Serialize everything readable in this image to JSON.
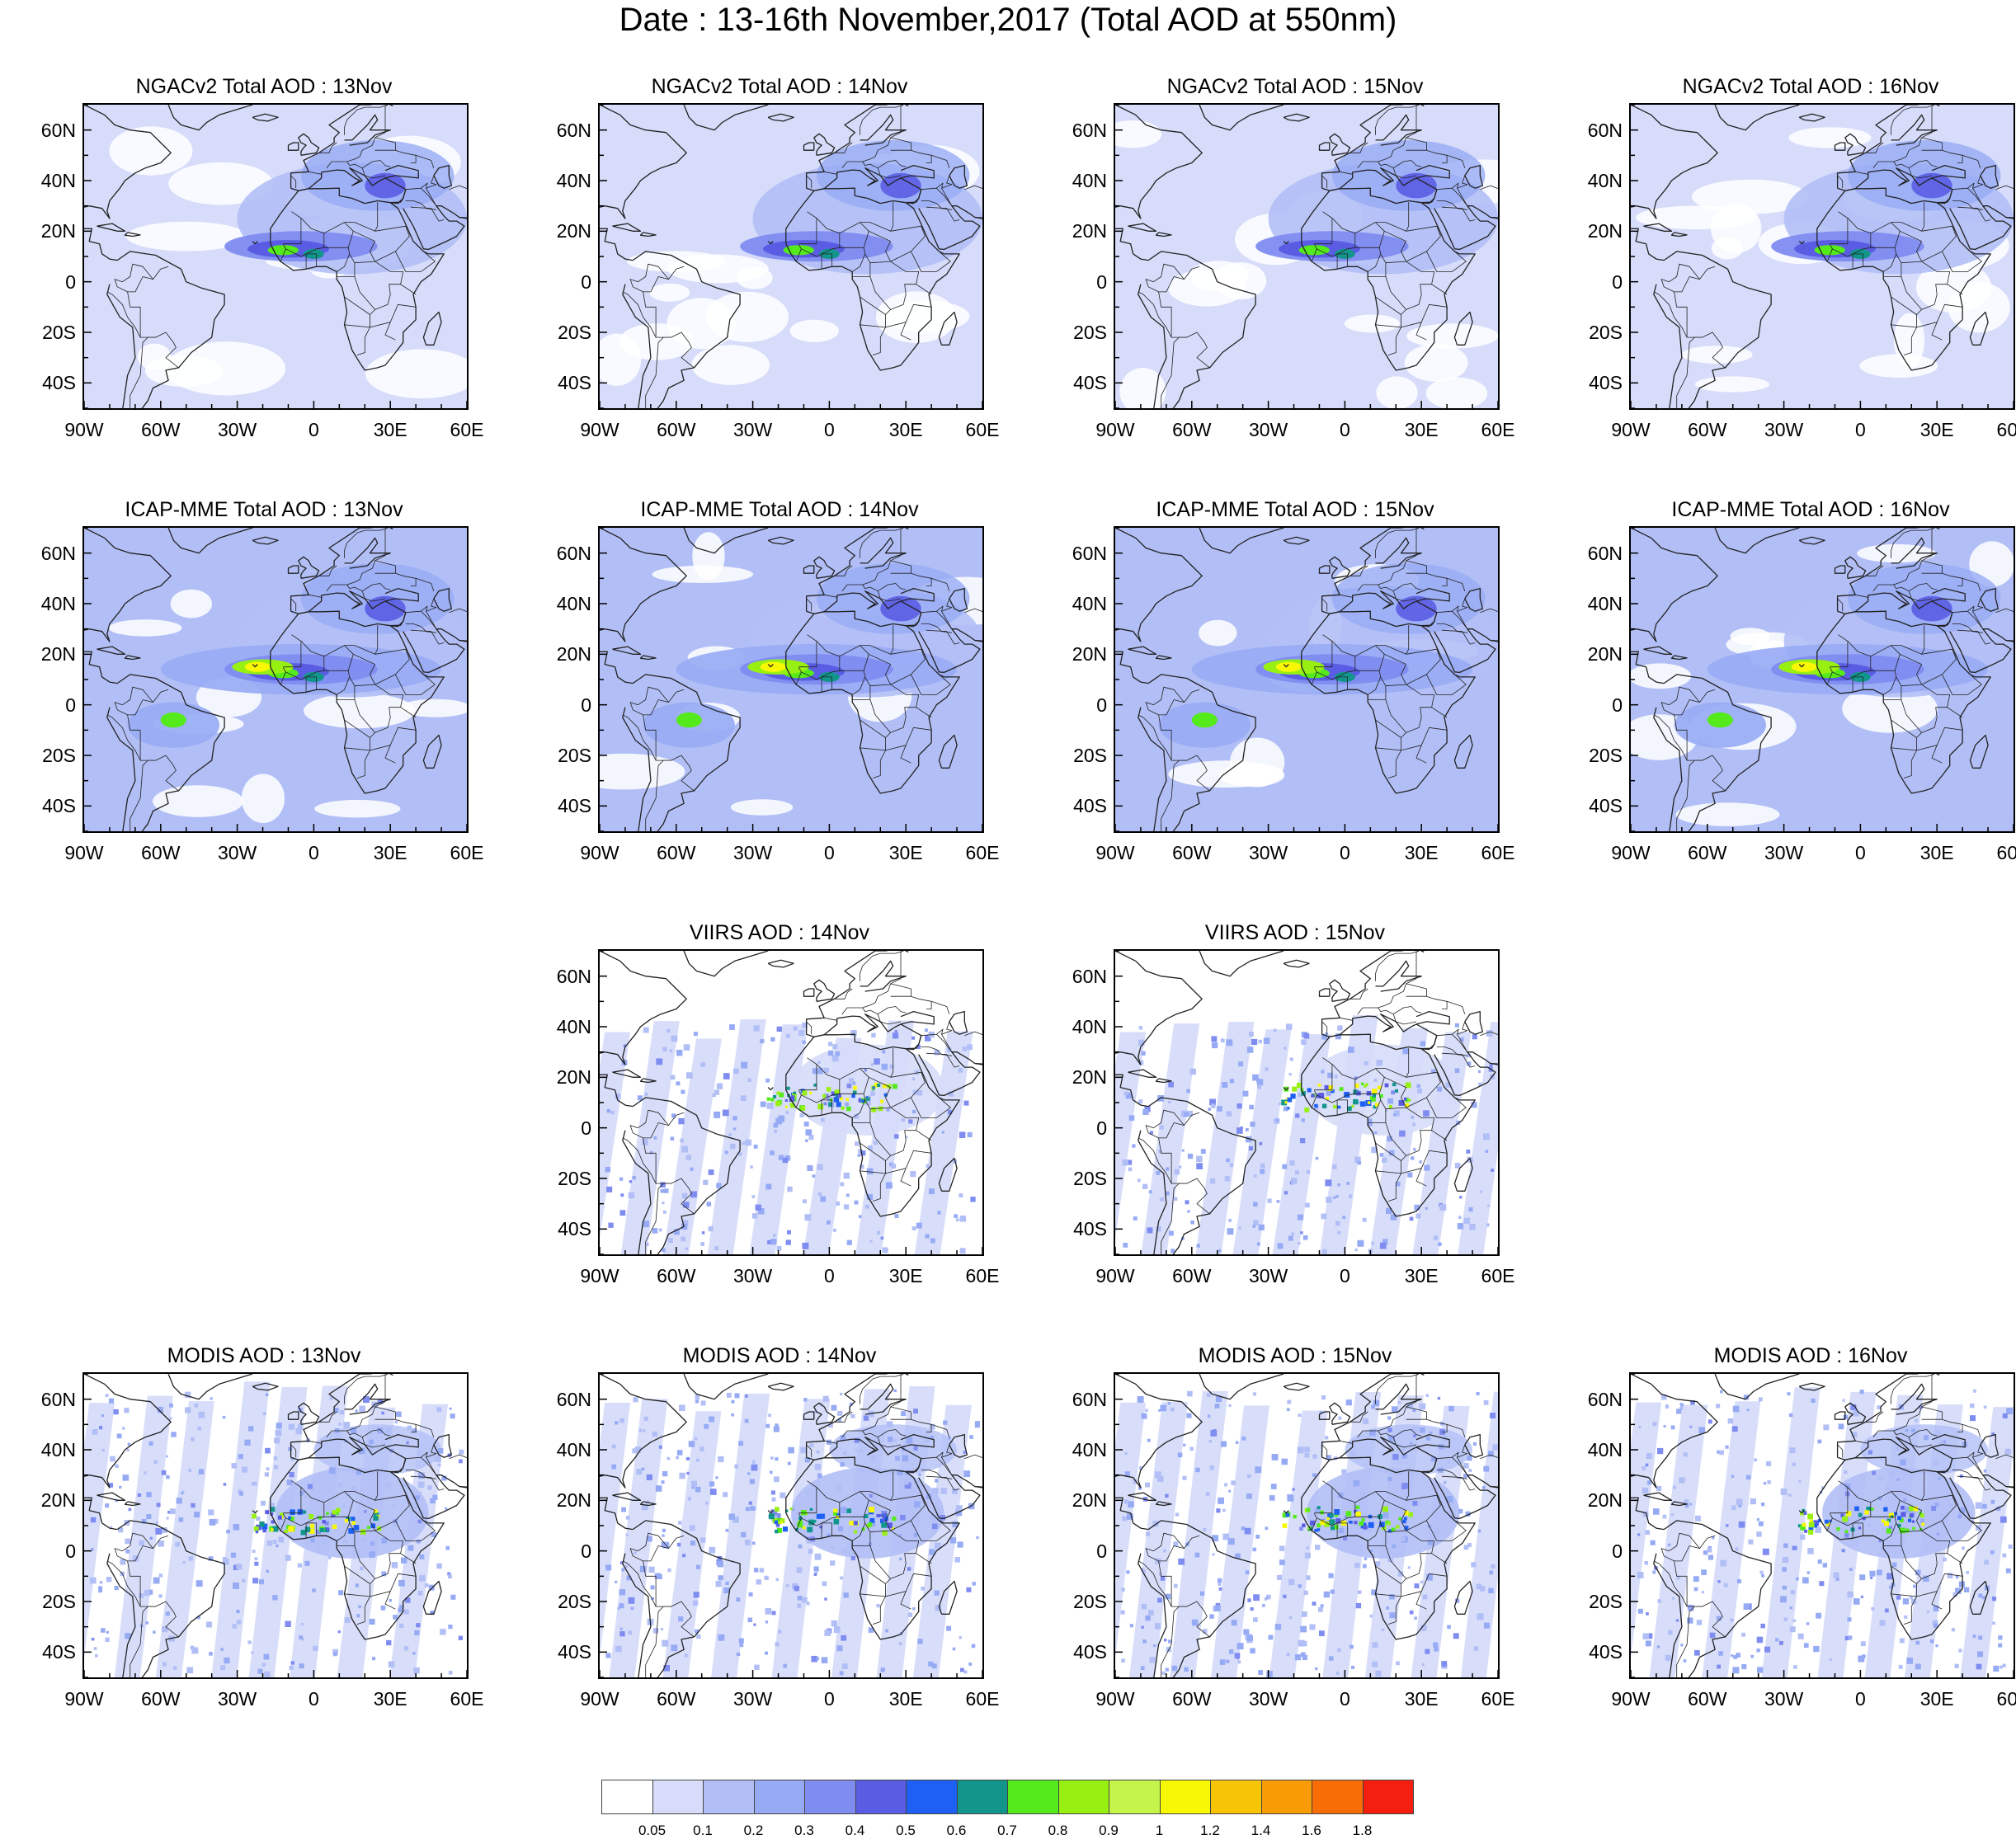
{
  "title": "Date : 13-16th November,2017 (Total AOD at 550nm)",
  "axes": {
    "y_labels": [
      "60N",
      "40N",
      "20N",
      "0",
      "20S",
      "40S"
    ],
    "x_labels": [
      "90W",
      "60W",
      "30W",
      "0",
      "30E",
      "60E"
    ]
  },
  "panels": {
    "ngac_13": {
      "title": "NGACv2 Total AOD : 13Nov",
      "style": "ngac"
    },
    "ngac_14": {
      "title": "NGACv2 Total AOD : 14Nov",
      "style": "ngac"
    },
    "ngac_15": {
      "title": "NGACv2 Total AOD : 15Nov",
      "style": "ngac"
    },
    "ngac_16": {
      "title": "NGACv2 Total AOD : 16Nov",
      "style": "ngac"
    },
    "icap_13": {
      "title": "ICAP-MME Total AOD : 13Nov",
      "style": "icap"
    },
    "icap_14": {
      "title": "ICAP-MME Total AOD : 14Nov",
      "style": "icap"
    },
    "icap_15": {
      "title": "ICAP-MME Total AOD : 15Nov",
      "style": "icap"
    },
    "icap_16": {
      "title": "ICAP-MME Total AOD : 16Nov",
      "style": "icap"
    },
    "viirs_14": {
      "title": "VIIRS AOD : 14Nov",
      "style": "viirs"
    },
    "viirs_15": {
      "title": "VIIRS AOD : 15Nov",
      "style": "viirs"
    },
    "modis_13": {
      "title": "MODIS AOD : 13Nov",
      "style": "modis"
    },
    "modis_14": {
      "title": "MODIS AOD : 14Nov",
      "style": "modis"
    },
    "modis_15": {
      "title": "MODIS AOD : 15Nov",
      "style": "modis"
    },
    "modis_16": {
      "title": "MODIS AOD : 16Nov",
      "style": "modis"
    }
  },
  "colorbar": {
    "labels": [
      "0.05",
      "0.1",
      "0.2",
      "0.3",
      "0.4",
      "0.5",
      "0.6",
      "0.7",
      "0.8",
      "0.9",
      "1",
      "1.2",
      "1.4",
      "1.6",
      "1.8"
    ],
    "colors": [
      "#ffffff",
      "#d6dcfa",
      "#b2bff6",
      "#97abf5",
      "#7f8cf0",
      "#5a5de4",
      "#1d60f3",
      "#12968c",
      "#55ea1b",
      "#97f012",
      "#c5f54a",
      "#f8f805",
      "#f8c506",
      "#f89c06",
      "#f86d06",
      "#f41f0f"
    ]
  }
}
